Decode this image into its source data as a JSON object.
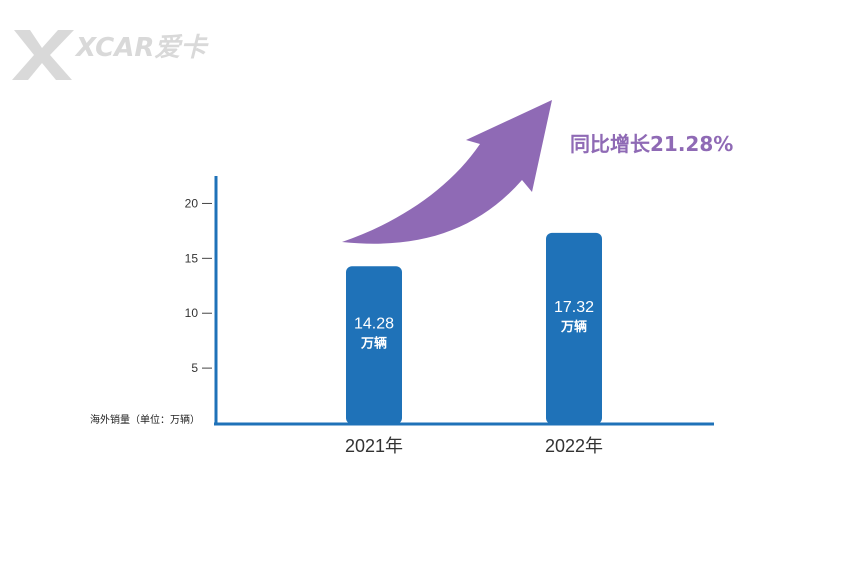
{
  "logo": {
    "text": "XCAR爱卡"
  },
  "chart_data": {
    "type": "bar",
    "categories": [
      "2021年",
      "2022年"
    ],
    "values": [
      14.28,
      17.32
    ],
    "bar_labels": [
      "14.28",
      "17.32"
    ],
    "bar_unit": "万辆",
    "ylabel": "海外销量（单位：万辆）",
    "yticks": [
      5,
      10,
      15,
      20
    ],
    "ylim": [
      0,
      22.5
    ],
    "annotation": "同比增长21.28%",
    "grid": false
  },
  "colors": {
    "bar": "#1f72b8",
    "axis": "#1f72b8",
    "arrow": "#8f6ab5",
    "annotation": "#8f6ab5",
    "logo": "#d9d9d9"
  }
}
